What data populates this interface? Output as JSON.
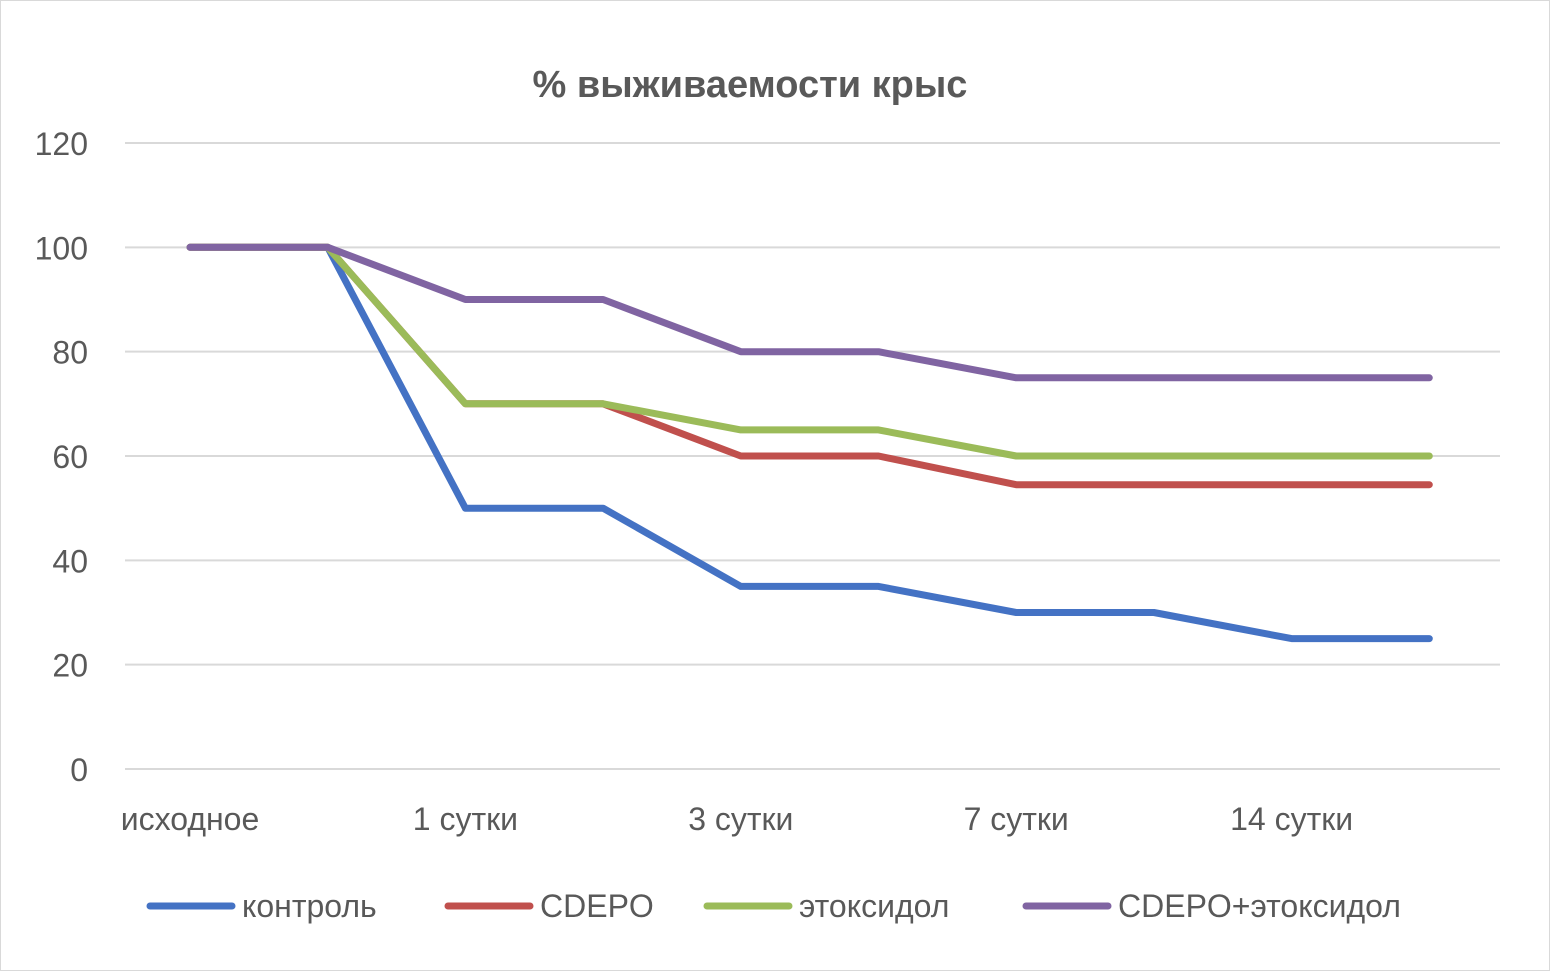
{
  "chart_data": {
    "type": "line",
    "title": "% выживаемости крыс",
    "xlabel": "",
    "ylabel": "",
    "ylim": [
      0,
      120
    ],
    "yticks": [
      0,
      20,
      40,
      60,
      80,
      100,
      120
    ],
    "x_tick_labels": [
      "исходное",
      "1 сутки",
      "3 сутки",
      "7 сутки",
      "14 сутки"
    ],
    "grid": true,
    "legend_position": "bottom",
    "series": [
      {
        "name": "контроль",
        "color": "#4472c4",
        "values": [
          100,
          100,
          50,
          50,
          35,
          35,
          30,
          30,
          25,
          25
        ]
      },
      {
        "name": "CDEPO",
        "color": "#c0504d",
        "values": [
          100,
          100,
          70,
          70,
          60,
          60,
          54.5,
          54.5,
          54.5,
          54.5
        ]
      },
      {
        "name": "этоксидол",
        "color": "#9bbb59",
        "values": [
          100,
          100,
          70,
          70,
          65,
          65,
          60,
          60,
          60,
          60
        ]
      },
      {
        "name": "CDEPO+этоксидол",
        "color": "#8064a2",
        "values": [
          100,
          100,
          90,
          90,
          80,
          80,
          75,
          75,
          75,
          75
        ]
      }
    ]
  }
}
